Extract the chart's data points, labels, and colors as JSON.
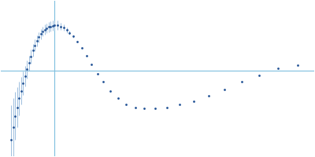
{
  "title": "",
  "background_color": "#ffffff",
  "line_color": "#7fbfdf",
  "dot_color": "#1f5094",
  "error_color": "#9dbfdf",
  "figsize": [
    4.0,
    2.0
  ],
  "dpi": 100,
  "x_data": [
    0.01,
    0.014,
    0.018,
    0.022,
    0.026,
    0.03,
    0.034,
    0.038,
    0.042,
    0.046,
    0.05,
    0.054,
    0.058,
    0.062,
    0.066,
    0.07,
    0.074,
    0.078,
    0.082,
    0.086,
    0.09,
    0.094,
    0.098,
    0.104,
    0.11,
    0.116,
    0.122,
    0.128,
    0.136,
    0.144,
    0.152,
    0.162,
    0.172,
    0.184,
    0.196,
    0.21,
    0.226,
    0.242,
    0.26,
    0.278,
    0.3,
    0.324,
    0.35,
    0.378,
    0.408,
    0.44,
    0.474,
    0.51,
    0.548,
    0.588
  ],
  "y_data": [
    -1.1,
    -0.9,
    -0.72,
    -0.58,
    -0.44,
    -0.32,
    -0.2,
    -0.09,
    0.02,
    0.12,
    0.22,
    0.32,
    0.4,
    0.47,
    0.53,
    0.58,
    0.62,
    0.65,
    0.67,
    0.69,
    0.7,
    0.71,
    0.72,
    0.72,
    0.7,
    0.68,
    0.64,
    0.6,
    0.54,
    0.46,
    0.36,
    0.24,
    0.1,
    -0.05,
    -0.18,
    -0.32,
    -0.44,
    -0.53,
    -0.58,
    -0.6,
    -0.6,
    -0.58,
    -0.54,
    -0.48,
    -0.4,
    -0.3,
    -0.18,
    -0.07,
    0.04,
    0.08
  ],
  "yerr_data": [
    0.55,
    0.46,
    0.38,
    0.32,
    0.27,
    0.22,
    0.19,
    0.16,
    0.14,
    0.12,
    0.11,
    0.1,
    0.09,
    0.09,
    0.08,
    0.08,
    0.08,
    0.08,
    0.08,
    0.08,
    0.08,
    0.08,
    0.08,
    0.07,
    0.06,
    0.05,
    0.04,
    0.03,
    0.02,
    0.01,
    0.0,
    0.0,
    0.0,
    0.0,
    0.0,
    0.0,
    0.0,
    0.0,
    0.0,
    0.0,
    0.0,
    0.0,
    0.0,
    0.0,
    0.0,
    0.0,
    0.0,
    0.0,
    0.0,
    0.0
  ],
  "hline_y": 0.0,
  "vline_x": 0.098,
  "xlim": [
    -0.01,
    0.62
  ],
  "ylim": [
    -1.35,
    1.1
  ]
}
